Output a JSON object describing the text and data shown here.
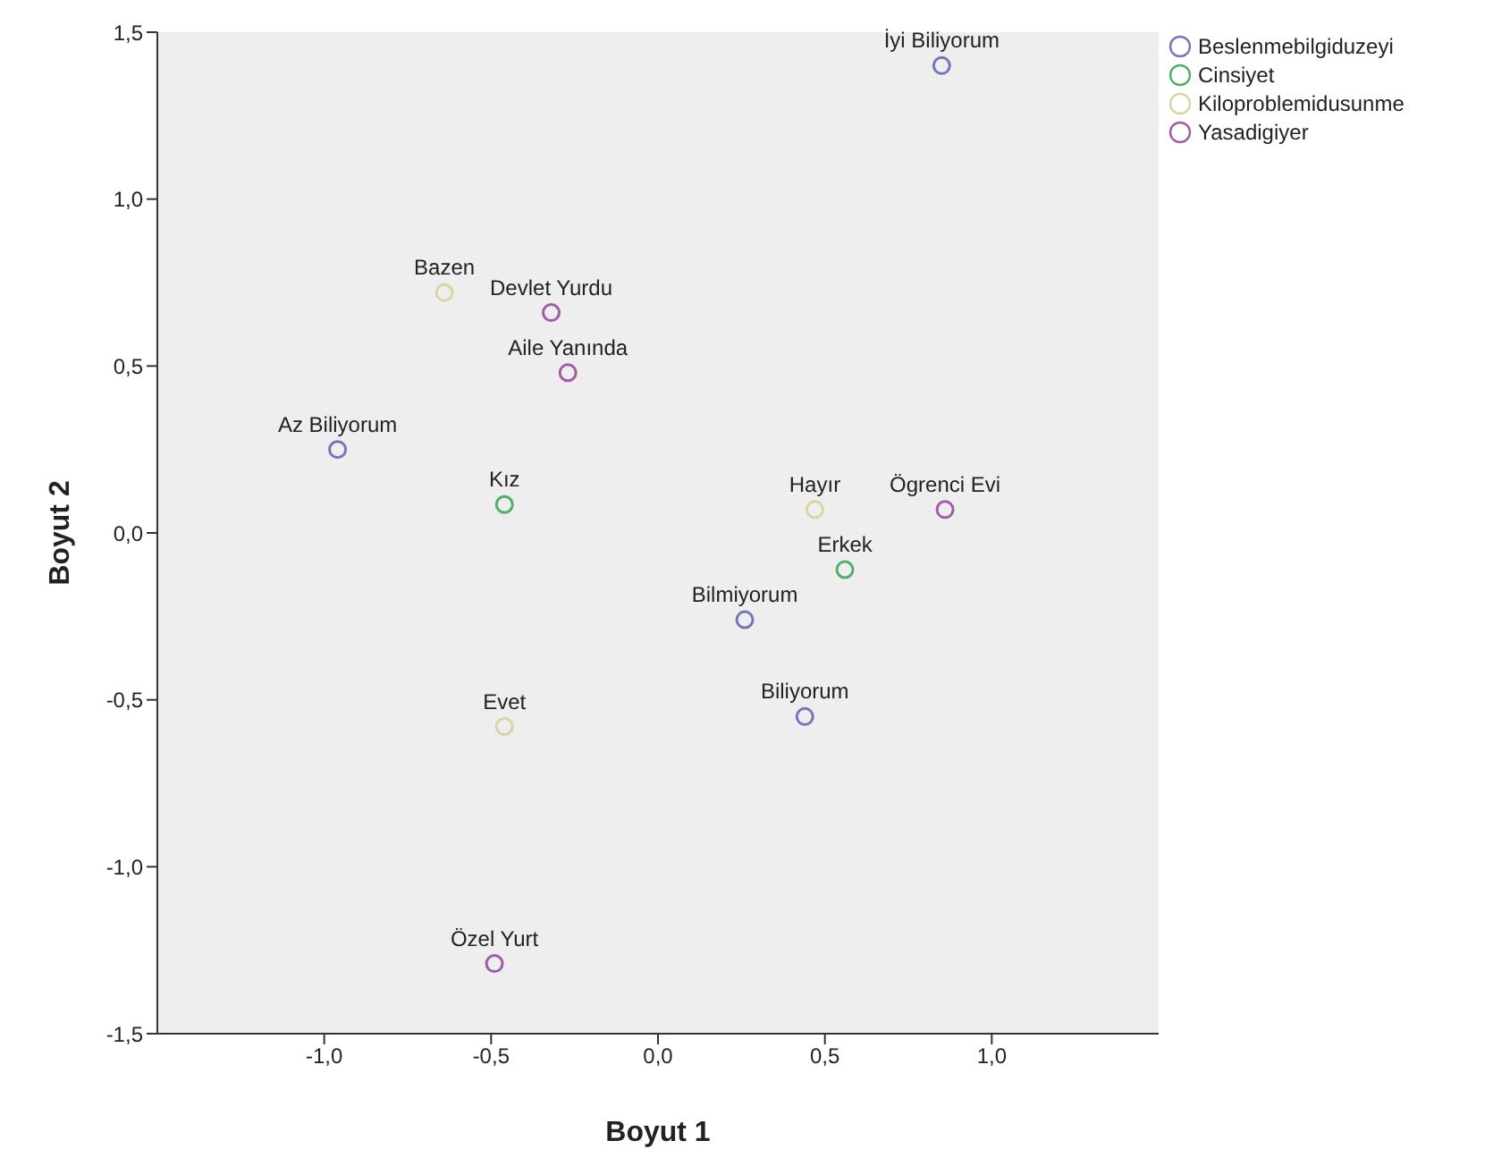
{
  "chart_data": {
    "type": "scatter",
    "xlabel": "Boyut 1",
    "ylabel": "Boyut 2",
    "xlim": [
      -1.5,
      1.5
    ],
    "xticks": [
      {
        "value": -1,
        "label": "-1,0"
      },
      {
        "value": -0.5,
        "label": "-0,5"
      },
      {
        "value": 0,
        "label": "0,0"
      },
      {
        "value": 0.5,
        "label": "0,5"
      },
      {
        "value": 1,
        "label": "1,0"
      }
    ],
    "ylim": [
      -1.5,
      1.5
    ],
    "yticks": [
      {
        "value": -1.5,
        "label": "-1,5"
      },
      {
        "value": -1,
        "label": "-1,0"
      },
      {
        "value": -0.5,
        "label": "-0,5"
      },
      {
        "value": 0,
        "label": "0,0"
      },
      {
        "value": 0.5,
        "label": "0,5"
      },
      {
        "value": 1,
        "label": "1,0"
      },
      {
        "value": 1.5,
        "label": "1,5"
      }
    ],
    "grid": false,
    "legend": "top right",
    "marker": "circle",
    "series": [
      {
        "name": "Beslenmebilgiduzeyi",
        "color": "#7575bd",
        "x": [
          0.85,
          -0.96,
          0.26,
          0.44
        ],
        "values": [
          1.4,
          0.25,
          -0.26,
          -0.55
        ]
      },
      {
        "name": "Cinsiyet",
        "color": "#4fb06a",
        "x": [
          -0.46,
          0.56
        ],
        "values": [
          0.085,
          -0.11
        ]
      },
      {
        "name": "Kiloproblemidusunme",
        "color": "#d9d6a4",
        "x": [
          -0.64,
          0.47,
          -0.46
        ],
        "values": [
          0.72,
          0.07,
          -0.58
        ]
      },
      {
        "name": "Yasadigiyer",
        "color": "#a35ba8",
        "x": [
          -0.32,
          -0.27,
          0.86,
          -0.49
        ],
        "values": [
          0.66,
          0.48,
          0.07,
          -1.29
        ]
      }
    ],
    "annotations": [
      {
        "text": "İyi Biliyorum",
        "x": 0.85,
        "y": 1.4
      },
      {
        "text": "Az Biliyorum",
        "x": -0.96,
        "y": 0.25
      },
      {
        "text": "Bilmiyorum",
        "x": 0.26,
        "y": -0.26
      },
      {
        "text": "Biliyorum",
        "x": 0.44,
        "y": -0.55
      },
      {
        "text": "Kız",
        "x": -0.46,
        "y": 0.085
      },
      {
        "text": "Erkek",
        "x": 0.56,
        "y": -0.11
      },
      {
        "text": "Bazen",
        "x": -0.64,
        "y": 0.72
      },
      {
        "text": "Hayır",
        "x": 0.47,
        "y": 0.07
      },
      {
        "text": "Evet",
        "x": -0.46,
        "y": -0.58
      },
      {
        "text": "Devlet Yurdu",
        "x": -0.32,
        "y": 0.66
      },
      {
        "text": "Aile Yanında",
        "x": -0.27,
        "y": 0.48
      },
      {
        "text": "Ögrenci Evi",
        "x": 0.86,
        "y": 0.07
      },
      {
        "text": "Özel Yurt",
        "x": -0.49,
        "y": -1.29
      }
    ]
  }
}
